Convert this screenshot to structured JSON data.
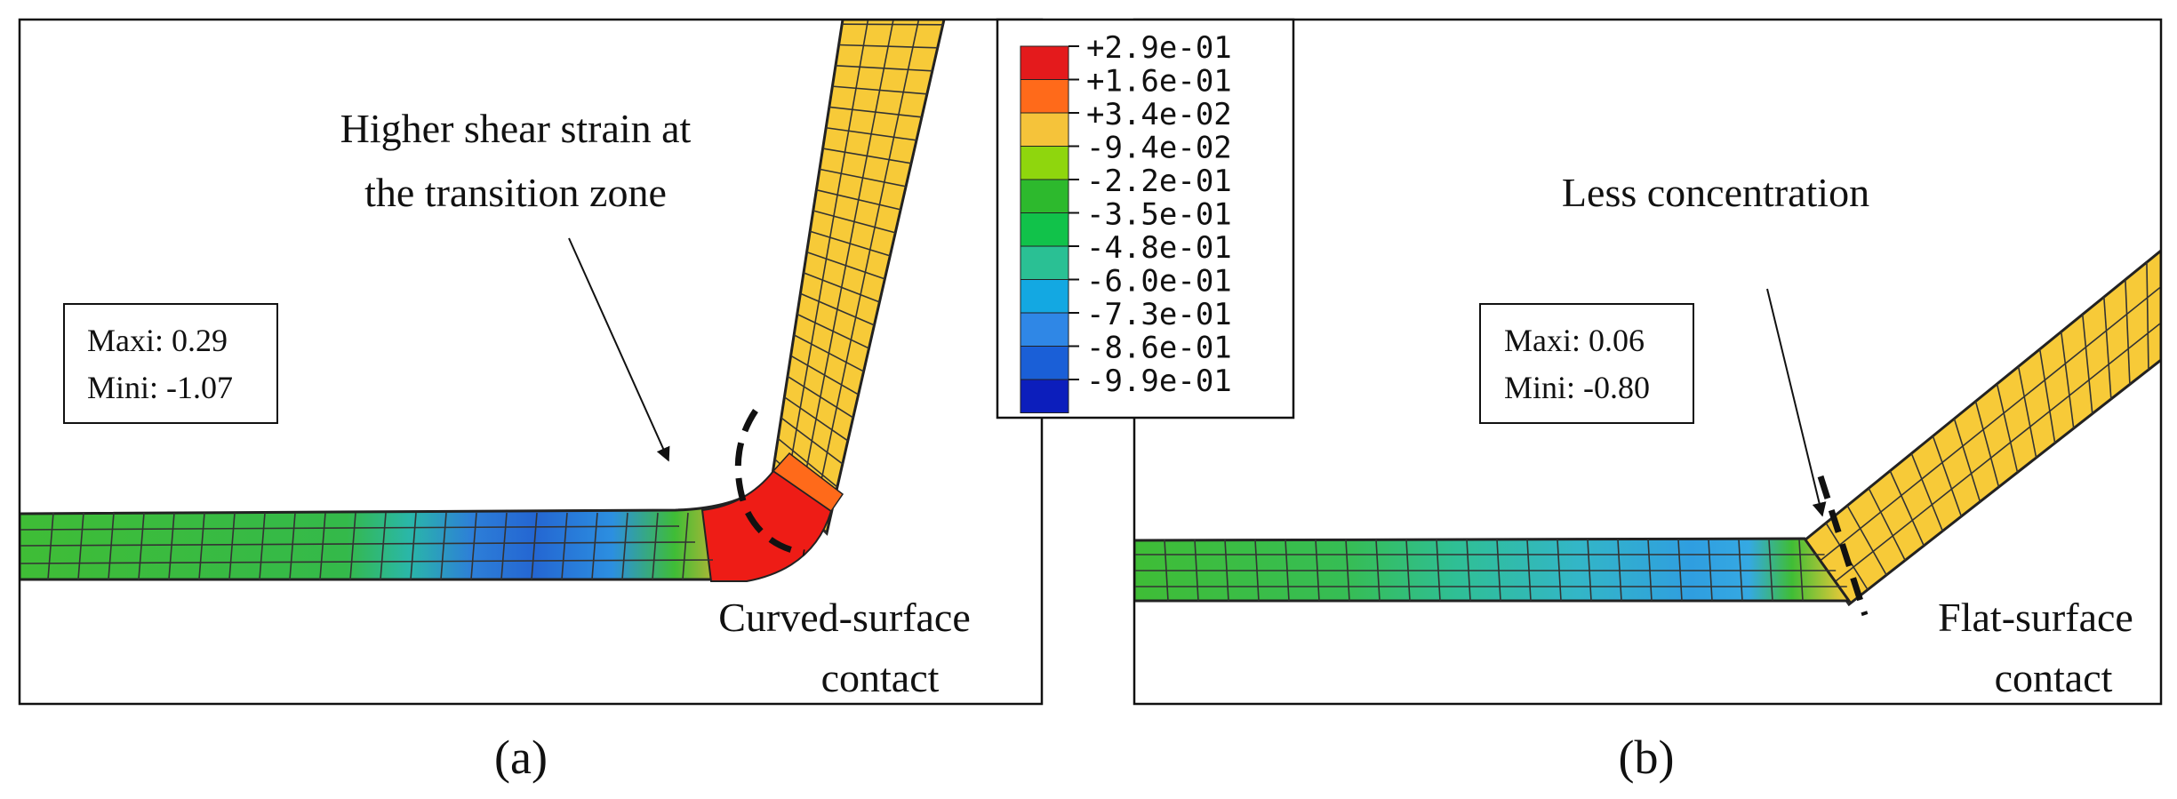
{
  "colors": {
    "legend_bins": [
      "#e41a1c",
      "#ff6a1a",
      "#f5c33a",
      "#8fd60d",
      "#2db92d",
      "#11c24a",
      "#2ac094",
      "#13a8e2",
      "#2f87e6",
      "#1a5fd7",
      "#0c1ebc"
    ],
    "strip_yellow": "#f7ca38",
    "strip_green": "#3fbd36",
    "strip_blue": "#2d7fd8",
    "strip_red": "#ee1c16",
    "strip_cyan": "#33aee0"
  },
  "legend": {
    "labels": [
      "+2.9e-01",
      "+1.6e-01",
      "+3.4e-02",
      "-9.4e-02",
      "-2.2e-01",
      "-3.5e-01",
      "-4.8e-01",
      "-6.0e-01",
      "-7.3e-01",
      "-8.6e-01",
      "-9.9e-01"
    ]
  },
  "panel_a": {
    "annotation_line1": "Higher shear strain at",
    "annotation_line2": "the transition zone",
    "max_label": "Maxi: 0.29",
    "min_label": "Mini: -1.07",
    "contact_line1": "Curved-surface",
    "contact_line2": "contact",
    "caption": "(a)"
  },
  "panel_b": {
    "annotation": "Less concentration",
    "max_label": "Maxi: 0.06",
    "min_label": "Mini: -0.80",
    "contact_line1": "Flat-surface",
    "contact_line2": "contact",
    "caption": "(b)"
  }
}
